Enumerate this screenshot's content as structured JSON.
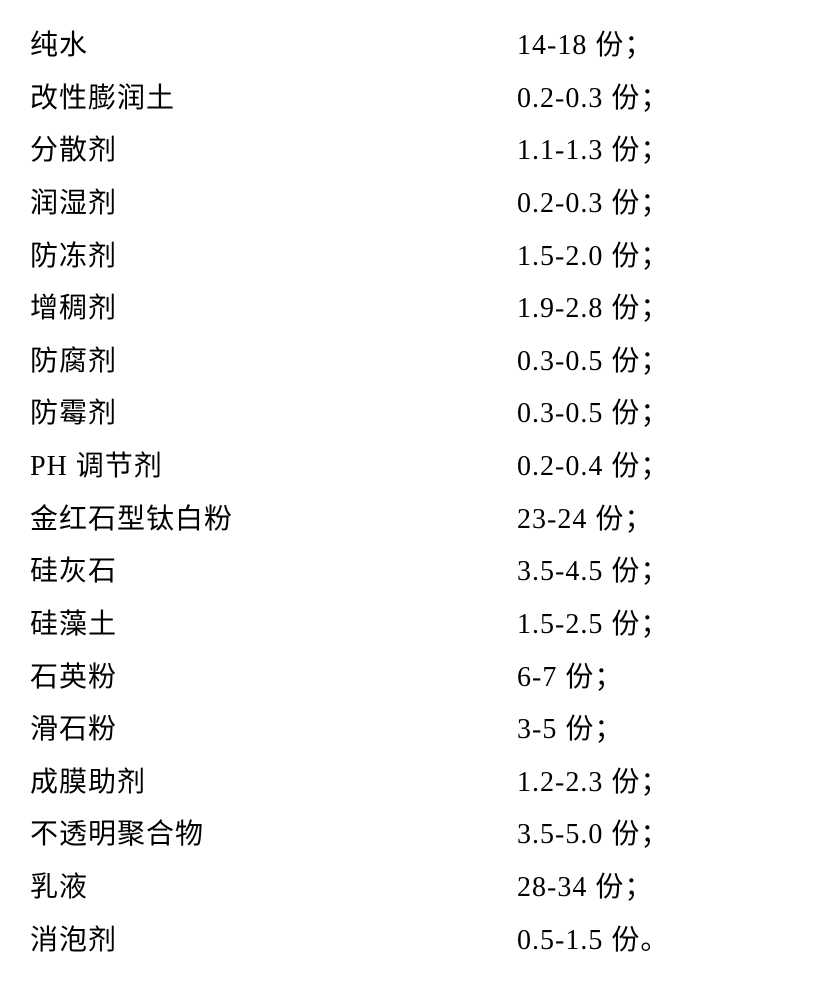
{
  "table": {
    "fontsize": 28,
    "font_family": "SimSun",
    "text_color": "#000000",
    "background_color": "#ffffff",
    "line_height": 1.88,
    "letter_spacing": 1,
    "rows": [
      {
        "label": "纯水",
        "value": "14-18 份；"
      },
      {
        "label": "改性膨润土",
        "value": "0.2-0.3 份；"
      },
      {
        "label": "分散剂",
        "value": "1.1-1.3 份；"
      },
      {
        "label": "润湿剂",
        "value": "0.2-0.3 份；"
      },
      {
        "label": "防冻剂",
        "value": "1.5-2.0 份；"
      },
      {
        "label": "增稠剂",
        "value": "1.9-2.8 份；"
      },
      {
        "label": "防腐剂",
        "value": "0.3-0.5 份；"
      },
      {
        "label": "防霉剂",
        "value": "0.3-0.5 份；"
      },
      {
        "label": "PH 调节剂",
        "value": "0.2-0.4 份；"
      },
      {
        "label": "金红石型钛白粉",
        "value": "23-24 份；"
      },
      {
        "label": "硅灰石",
        "value": "3.5-4.5 份；"
      },
      {
        "label": "硅藻土",
        "value": "1.5-2.5 份；"
      },
      {
        "label": "石英粉",
        "value": "6-7 份；"
      },
      {
        "label": "滑石粉",
        "value": "3-5 份；"
      },
      {
        "label": "成膜助剂",
        "value": "1.2-2.3 份；"
      },
      {
        "label": "不透明聚合物",
        "value": "3.5-5.0 份；"
      },
      {
        "label": "乳液",
        "value": "28-34 份；"
      },
      {
        "label": "消泡剂",
        "value": "0.5-1.5 份。"
      }
    ]
  }
}
